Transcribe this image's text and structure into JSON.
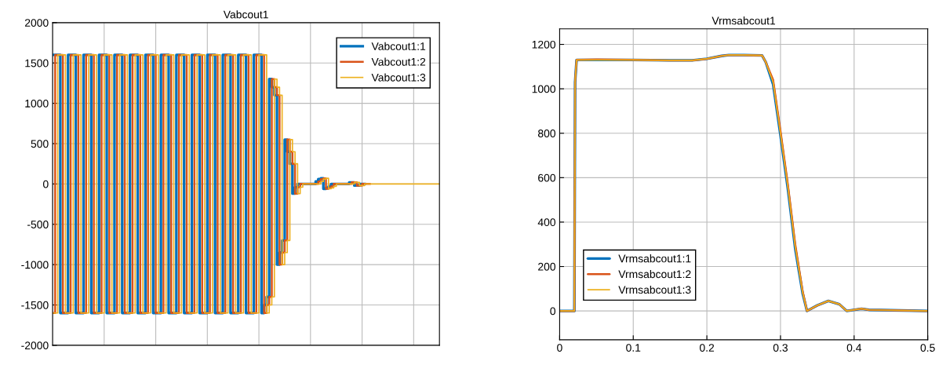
{
  "chart_data": [
    {
      "type": "step",
      "title": "Vabcout1",
      "categories": [
        null,
        null,
        null,
        null,
        null,
        null,
        null,
        null,
        null,
        null,
        null,
        null,
        null,
        null,
        null,
        null,
        null,
        null,
        null,
        null,
        null,
        null,
        null,
        null,
        null,
        null,
        null,
        null,
        null,
        null,
        null,
        null,
        null,
        null,
        null,
        null,
        null,
        null,
        null,
        null,
        null,
        null,
        null,
        null,
        null,
        null,
        null,
        null,
        null,
        null,
        null,
        null,
        null,
        null,
        null,
        null,
        null,
        null,
        null,
        null,
        null,
        null,
        null,
        null,
        null,
        null,
        null,
        null,
        null,
        null,
        null,
        null,
        null,
        null,
        null,
        null,
        null,
        null,
        null,
        null,
        null,
        null,
        null,
        null,
        null,
        null,
        null,
        null,
        null,
        null,
        null,
        null,
        null,
        null,
        null,
        null,
        null,
        null,
        null,
        null,
        null,
        null,
        null,
        null,
        null,
        null,
        null,
        null,
        null,
        null,
        null,
        null,
        null,
        null,
        null,
        null,
        null,
        null,
        null,
        null,
        null,
        null,
        null,
        null,
        null,
        null,
        null,
        null,
        null,
        null,
        null,
        null,
        null,
        null,
        null,
        null,
        null,
        null,
        null,
        null,
        null,
        null,
        null,
        null,
        null,
        null,
        null,
        null,
        null,
        null,
        null
      ],
      "tick_labels": "y",
      "ylim": [
        -2000,
        2000
      ],
      "yticks": [
        -2000,
        -1500,
        -1000,
        -500,
        0,
        500,
        1000,
        1500,
        2000
      ],
      "grid": true,
      "legend": "top right",
      "series": [
        {
          "name": "Vabcout1:1",
          "color": "#0072bd",
          "values": [
            1600,
            1600,
            1600,
            -1600,
            -1600,
            -1600,
            1600,
            1600,
            1600,
            -1600,
            -1600,
            -1600,
            1600,
            1600,
            1600,
            -1600,
            -1600,
            -1600,
            1600,
            1600,
            1600,
            -1600,
            -1600,
            -1600,
            1600,
            1600,
            1600,
            -1600,
            -1600,
            -1600,
            1600,
            1600,
            1600,
            -1600,
            -1600,
            -1600,
            1600,
            1600,
            1600,
            -1600,
            -1600,
            -1600,
            1600,
            1600,
            1600,
            -1600,
            -1600,
            -1600,
            1600,
            1600,
            1600,
            -1600,
            -1600,
            -1600,
            1600,
            1600,
            1600,
            -1600,
            -1600,
            -1600,
            1600,
            1600,
            1600,
            -1600,
            -1600,
            -1600,
            1600,
            1600,
            1600,
            -1600,
            -1600,
            -1600,
            1600,
            1600,
            1600,
            -1600,
            -1600,
            -1600,
            1600,
            1600,
            1600,
            -1600,
            -1500,
            -1400,
            1300,
            1200,
            1100,
            -1000,
            -850,
            -700,
            550,
            400,
            250,
            -120,
            -40,
            0,
            0,
            0,
            0,
            0,
            0,
            0,
            30,
            60,
            70,
            -60,
            -50,
            -30,
            0,
            0,
            0,
            0,
            0,
            0,
            0,
            20,
            20,
            -20,
            -20,
            0,
            0,
            0,
            null,
            null,
            null,
            null,
            null,
            null,
            null,
            null,
            null,
            null,
            null,
            null,
            null,
            null,
            null,
            null,
            null,
            null,
            null,
            null,
            null,
            null,
            null,
            null,
            null,
            null,
            null,
            null,
            null
          ]
        },
        {
          "name": "Vabcout1:2",
          "color": "#d95319",
          "values": [
            -1600,
            1600,
            1600,
            1600,
            -1600,
            -1600,
            -1600,
            1600,
            1600,
            1600,
            -1600,
            -1600,
            -1600,
            1600,
            1600,
            1600,
            -1600,
            -1600,
            -1600,
            1600,
            1600,
            1600,
            -1600,
            -1600,
            -1600,
            1600,
            1600,
            1600,
            -1600,
            -1600,
            -1600,
            1600,
            1600,
            1600,
            -1600,
            -1600,
            -1600,
            1600,
            1600,
            1600,
            -1600,
            -1600,
            -1600,
            1600,
            1600,
            1600,
            -1600,
            -1600,
            -1600,
            1600,
            1600,
            1600,
            -1600,
            -1600,
            -1600,
            1600,
            1600,
            1600,
            -1600,
            -1600,
            -1600,
            1600,
            1600,
            1600,
            -1600,
            -1600,
            -1600,
            1600,
            1600,
            1600,
            -1600,
            -1600,
            -1600,
            1600,
            1600,
            1600,
            -1600,
            -1600,
            -1600,
            1600,
            1600,
            1600,
            -1600,
            -1500,
            -1400,
            1300,
            1200,
            1100,
            -1000,
            -850,
            -700,
            550,
            400,
            250,
            -120,
            -40,
            0,
            0,
            0,
            0,
            0,
            0,
            0,
            30,
            60,
            70,
            -60,
            -50,
            -30,
            0,
            0,
            0,
            0,
            0,
            0,
            0,
            20,
            20,
            -20,
            -20,
            0,
            0,
            0,
            0,
            null,
            null,
            null,
            null,
            null,
            null,
            null,
            null,
            null,
            null,
            null,
            null,
            null,
            null,
            null,
            null,
            null,
            null,
            null,
            null,
            null,
            null,
            null,
            null,
            null,
            null,
            null
          ]
        },
        {
          "name": "Vabcout1:3",
          "color": "#edb120",
          "values": [
            -1600,
            -1600,
            1600,
            1600,
            1600,
            -1600,
            -1600,
            -1600,
            1600,
            1600,
            1600,
            -1600,
            -1600,
            -1600,
            1600,
            1600,
            1600,
            -1600,
            -1600,
            -1600,
            1600,
            1600,
            1600,
            -1600,
            -1600,
            -1600,
            1600,
            1600,
            1600,
            -1600,
            -1600,
            -1600,
            1600,
            1600,
            1600,
            -1600,
            -1600,
            -1600,
            1600,
            1600,
            1600,
            -1600,
            -1600,
            -1600,
            1600,
            1600,
            1600,
            -1600,
            -1600,
            -1600,
            1600,
            1600,
            1600,
            -1600,
            -1600,
            -1600,
            1600,
            1600,
            1600,
            -1600,
            -1600,
            -1600,
            1600,
            1600,
            1600,
            -1600,
            -1600,
            -1600,
            1600,
            1600,
            1600,
            -1600,
            -1600,
            -1600,
            1600,
            1600,
            1600,
            -1600,
            -1600,
            -1600,
            1600,
            1600,
            1600,
            -1600,
            -1500,
            -1400,
            1300,
            1200,
            1100,
            -1000,
            -850,
            -700,
            550,
            400,
            250,
            -120,
            -40,
            0,
            0,
            0,
            0,
            0,
            0,
            0,
            30,
            60,
            70,
            -60,
            -50,
            -30,
            0,
            0,
            0,
            0,
            0,
            0,
            0,
            20,
            20,
            -20,
            -20,
            0,
            0,
            0,
            0,
            0,
            0,
            0,
            0,
            0,
            0,
            0,
            0,
            0,
            0,
            0,
            0,
            0,
            0,
            0,
            0,
            0,
            0,
            0,
            0,
            0,
            0,
            0,
            0,
            0,
            0
          ]
        }
      ]
    },
    {
      "type": "line",
      "title": "Vrmsabcout1",
      "xlim": [
        0,
        0.5
      ],
      "xticks": [
        0,
        0.1,
        0.2,
        0.3,
        0.4,
        0.5
      ],
      "ylim": [
        -130,
        1270
      ],
      "yticks": [
        0,
        200,
        400,
        600,
        800,
        1000,
        1200
      ],
      "grid": true,
      "legend": "bottom left",
      "x": [
        0,
        0.02,
        0.021,
        0.023,
        0.05,
        0.1,
        0.15,
        0.18,
        0.2,
        0.22,
        0.23,
        0.25,
        0.275,
        0.28,
        0.29,
        0.3,
        0.31,
        0.32,
        0.33,
        0.336,
        0.35,
        0.365,
        0.38,
        0.39,
        0.41,
        0.42,
        0.45,
        0.5
      ],
      "series": [
        {
          "name": "Vrmsabcout1:1",
          "color": "#0072bd",
          "values": [
            0,
            0,
            1030,
            1130,
            1130,
            1130,
            1128,
            1128,
            1135,
            1148,
            1152,
            1152,
            1150,
            1120,
            1020,
            790,
            550,
            280,
            80,
            0,
            25,
            45,
            30,
            0,
            10,
            5,
            3,
            0
          ]
        },
        {
          "name": "Vrmsabcout1:2",
          "color": "#d95319",
          "values": [
            0,
            0,
            1030,
            1130,
            1132,
            1130,
            1128,
            1128,
            1135,
            1148,
            1152,
            1152,
            1150,
            1120,
            1040,
            810,
            570,
            300,
            90,
            0,
            25,
            45,
            30,
            0,
            10,
            5,
            3,
            0
          ]
        },
        {
          "name": "Vrmsabcout1:3",
          "color": "#edb120",
          "values": [
            0,
            0,
            1030,
            1130,
            1130,
            1130,
            1128,
            1128,
            1135,
            1148,
            1152,
            1152,
            1150,
            1120,
            1030,
            800,
            560,
            290,
            85,
            0,
            25,
            45,
            30,
            0,
            10,
            5,
            3,
            0
          ]
        }
      ]
    }
  ]
}
